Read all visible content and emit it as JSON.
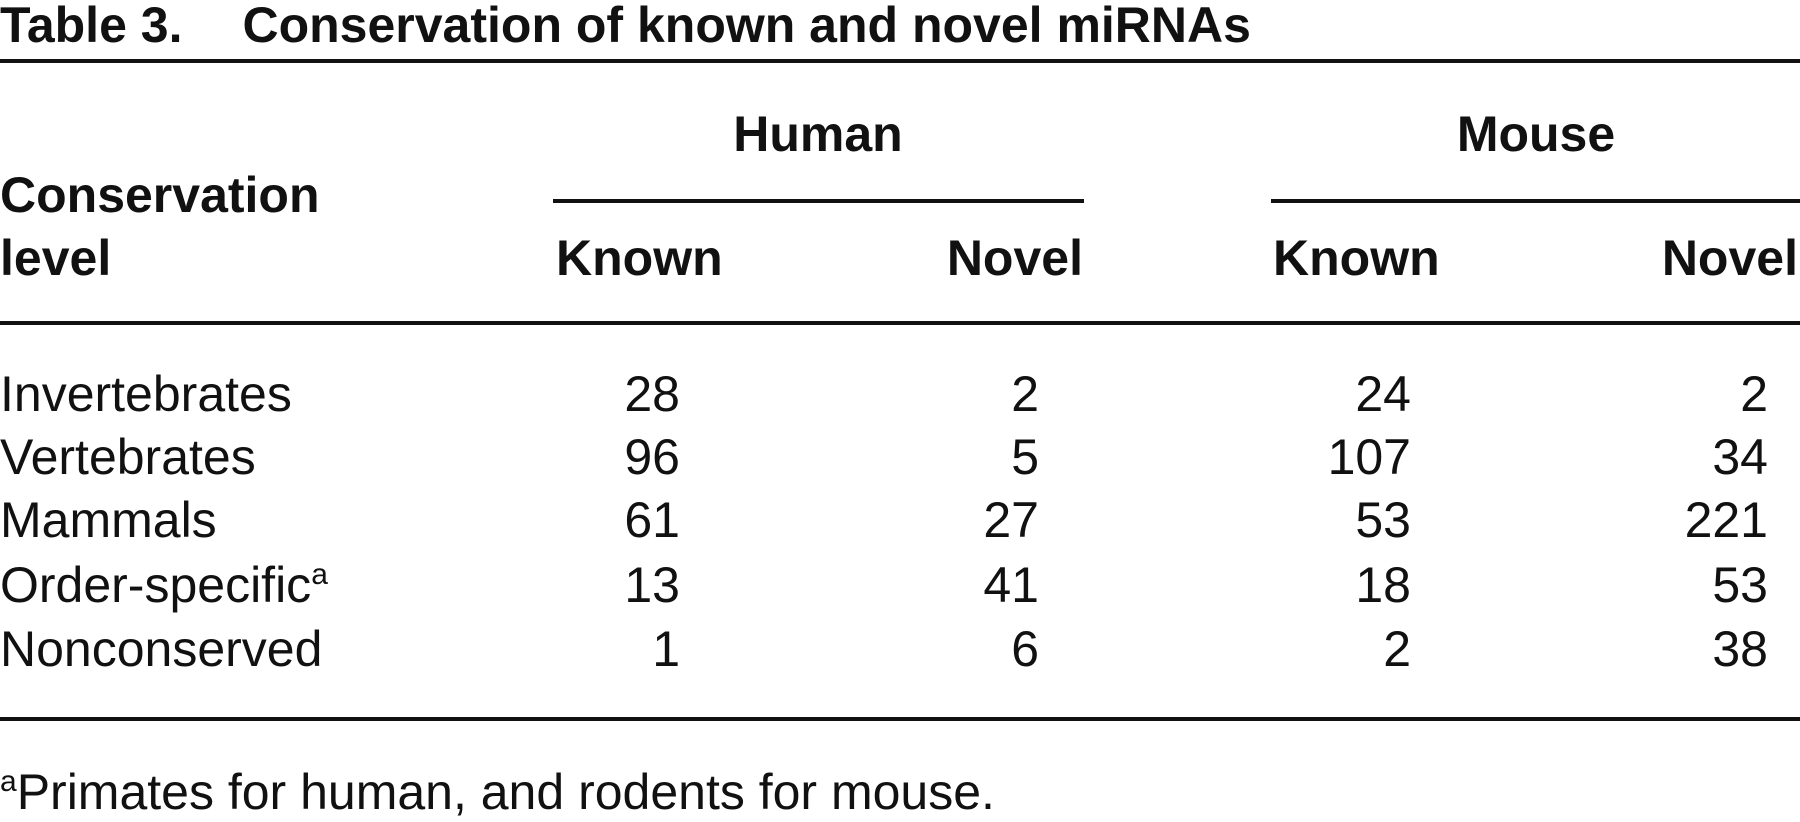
{
  "title": {
    "label": "Table 3.",
    "text": "Conservation of known and novel miRNAs"
  },
  "table": {
    "stub_header": "Conservation level",
    "groups": [
      "Human",
      "Mouse"
    ],
    "columns": [
      "Known",
      "Novel",
      "Known",
      "Novel"
    ],
    "rows": [
      {
        "label": "Invertebrates",
        "values": [
          28,
          2,
          24,
          2
        ]
      },
      {
        "label": "Vertebrates",
        "values": [
          96,
          5,
          107,
          34
        ]
      },
      {
        "label": "Mammals",
        "values": [
          61,
          27,
          53,
          221
        ]
      },
      {
        "label": "Order-specific",
        "note": "a",
        "values": [
          13,
          41,
          18,
          53
        ]
      },
      {
        "label": "Nonconserved",
        "values": [
          1,
          6,
          2,
          38
        ]
      }
    ]
  },
  "footnote": {
    "mark": "a",
    "text": "Primates for human, and rodents for mouse."
  }
}
